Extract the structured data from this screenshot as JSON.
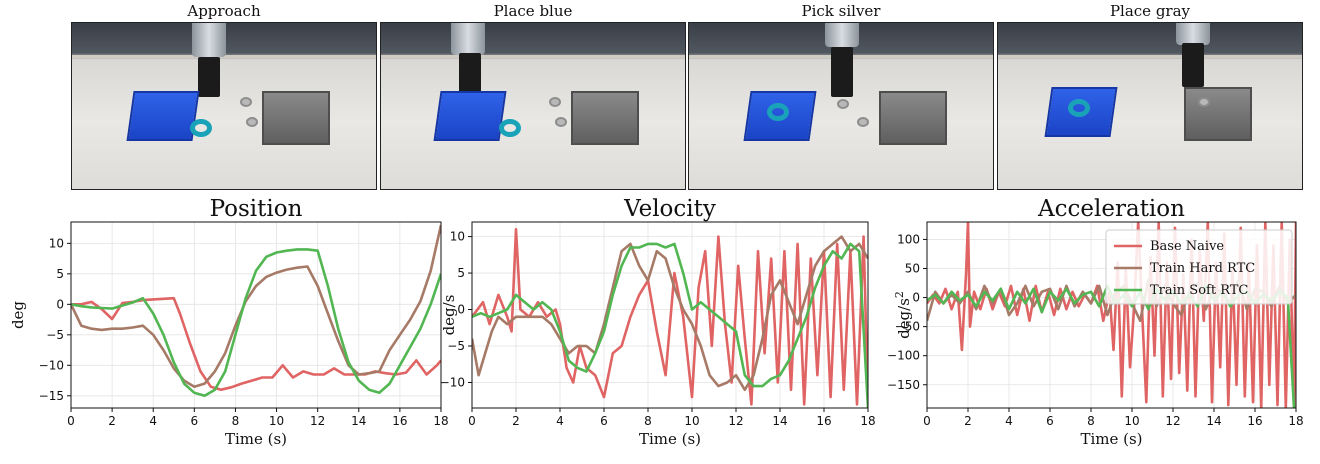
{
  "frames": [
    {
      "caption": "Approach"
    },
    {
      "caption": "Place blue"
    },
    {
      "caption": "Pick silver"
    },
    {
      "caption": "Place gray"
    }
  ],
  "colors": {
    "base_naive": "#e06464",
    "train_hard_rtc": "#a67a66",
    "train_soft_rtc": "#52b652"
  },
  "chart_data": [
    {
      "type": "line",
      "title": "Position",
      "xlabel": "Time (s)",
      "ylabel": "deg",
      "xlim": [
        0,
        18
      ],
      "ylim": [
        -17,
        13.5
      ],
      "xticks": [
        0,
        2,
        4,
        6,
        8,
        10,
        12,
        14,
        16,
        18
      ],
      "yticks": [
        10,
        5,
        0,
        -5,
        -10,
        -15
      ],
      "grid": true,
      "series": [
        {
          "key": "base_naive",
          "x": [
            0,
            0.5,
            1,
            1.5,
            2,
            2.5,
            3,
            3.5,
            4,
            4.5,
            5,
            5.3,
            5.8,
            6.3,
            6.8,
            7.3,
            7.8,
            8.3,
            8.8,
            9.3,
            9.8,
            10.3,
            10.8,
            11.3,
            11.8,
            12.3,
            12.8,
            13.3,
            13.8,
            14.3,
            14.8,
            15.3,
            15.8,
            16.3,
            16.8,
            17.3,
            17.8,
            18
          ],
          "y": [
            0,
            0,
            0.4,
            -0.8,
            -2.4,
            0.2,
            0.4,
            0.7,
            0.8,
            0.9,
            1.0,
            -1.5,
            -6.5,
            -11,
            -13.5,
            -14,
            -13.6,
            -13,
            -12.5,
            -12,
            -12,
            -10,
            -12,
            -11,
            -11.5,
            -11.5,
            -10.5,
            -11.5,
            -11.5,
            -11.5,
            -11,
            -11.3,
            -11.5,
            -11.2,
            -9.2,
            -11.5,
            -10,
            -9.2
          ]
        },
        {
          "key": "train_hard_rtc",
          "x": [
            0,
            0.5,
            1,
            1.5,
            2,
            2.5,
            3,
            3.5,
            4,
            4.5,
            5,
            5.5,
            6,
            6.5,
            7,
            7.5,
            8,
            8.5,
            9,
            9.5,
            10,
            10.5,
            11,
            11.5,
            12,
            12.5,
            13,
            13.5,
            14,
            14.5,
            15,
            15.5,
            16,
            16.5,
            17,
            17.5,
            18
          ],
          "y": [
            0,
            -3.5,
            -4,
            -4.2,
            -4,
            -4,
            -3.8,
            -3.5,
            -5,
            -7.5,
            -10.5,
            -12.5,
            -13.5,
            -13,
            -11,
            -8,
            -3.5,
            0.5,
            3,
            4.5,
            5.2,
            5.7,
            6,
            6.2,
            3,
            -1.5,
            -6,
            -10,
            -11.5,
            -11.3,
            -11,
            -7.5,
            -5,
            -2.5,
            0.5,
            5.5,
            13
          ]
        },
        {
          "key": "train_soft_rtc",
          "x": [
            0,
            0.5,
            1,
            1.5,
            2,
            2.5,
            3,
            3.5,
            4,
            4.5,
            5,
            5.5,
            6,
            6.5,
            7,
            7.5,
            8,
            8.5,
            9,
            9.5,
            10,
            10.5,
            11,
            11.5,
            12,
            12.5,
            13,
            13.5,
            14,
            14.5,
            15,
            15.5,
            16,
            16.5,
            17,
            17.5,
            18
          ],
          "y": [
            0,
            -0.3,
            -0.5,
            -0.6,
            -0.7,
            -0.2,
            0.3,
            1,
            -1.5,
            -5,
            -9.5,
            -13,
            -14.5,
            -15,
            -14,
            -11,
            -5,
            1,
            5.5,
            7.8,
            8.5,
            8.8,
            9,
            9,
            8.8,
            3,
            -4,
            -9.5,
            -12.5,
            -14,
            -14.5,
            -13,
            -10,
            -7,
            -4,
            0,
            5
          ]
        }
      ],
      "legend": null
    },
    {
      "type": "line",
      "title": "Velocity",
      "xlabel": "Time (s)",
      "ylabel": "deg/s",
      "xlim": [
        0,
        18
      ],
      "ylim": [
        -13.5,
        12
      ],
      "xticks": [
        0,
        2,
        4,
        6,
        8,
        10,
        12,
        14,
        16,
        18
      ],
      "yticks": [
        10,
        5,
        0,
        -5,
        -10
      ],
      "grid": true,
      "series": [
        {
          "key": "base_naive",
          "x": [
            0,
            0.5,
            0.8,
            1.2,
            1.6,
            1.8,
            2,
            2.2,
            2.6,
            3,
            3.4,
            3.8,
            4,
            4.3,
            4.6,
            4.9,
            5.2,
            5.6,
            6,
            6.4,
            6.8,
            7.2,
            7.6,
            8,
            8.4,
            8.8,
            9.2,
            9.6,
            10,
            10.3,
            10.6,
            10.9,
            11.2,
            11.5,
            11.8,
            12.1,
            12.4,
            12.7,
            13,
            13.3,
            13.6,
            13.9,
            14.2,
            14.5,
            14.8,
            15.1,
            15.4,
            15.7,
            16,
            16.3,
            16.6,
            16.9,
            17.2,
            17.5,
            17.8,
            18
          ],
          "y": [
            -1,
            1,
            -2,
            2,
            -1,
            -3,
            11,
            0,
            -1,
            1,
            -1,
            0,
            -2,
            -8,
            -10,
            -5,
            -8,
            -9,
            -12,
            -6,
            -5,
            -1,
            2,
            4,
            -3,
            -9,
            5,
            -1,
            -12,
            3,
            8,
            -5,
            10,
            -2,
            -10,
            6,
            -4,
            -13,
            8,
            -6,
            7,
            -10,
            8,
            -11,
            9,
            -13,
            7,
            -9,
            8,
            -12,
            9,
            -11,
            8,
            -13,
            10,
            -13
          ]
        },
        {
          "key": "train_hard_rtc",
          "x": [
            0,
            0.3,
            0.6,
            0.9,
            1.2,
            1.6,
            2,
            2.4,
            2.8,
            3.2,
            3.6,
            4,
            4.4,
            4.8,
            5.2,
            5.6,
            6,
            6.4,
            6.8,
            7.2,
            7.6,
            8,
            8.4,
            8.8,
            9.2,
            9.6,
            10,
            10.4,
            10.8,
            11.2,
            11.6,
            12,
            12.4,
            12.8,
            13.2,
            13.6,
            14,
            14.4,
            14.8,
            15.2,
            15.6,
            16,
            16.4,
            16.8,
            17.2,
            17.6,
            18
          ],
          "y": [
            -4,
            -9,
            -6,
            -3,
            -1,
            -2,
            -1,
            -1,
            -1,
            -1,
            -2,
            -4,
            -6,
            -5,
            -5,
            -6,
            -2,
            3,
            8,
            9,
            6,
            4,
            8,
            7,
            3,
            0,
            -2,
            -5,
            -9,
            -10.5,
            -10,
            -9,
            -11,
            -9,
            -4,
            2,
            4,
            1,
            -2,
            2,
            6,
            8,
            9,
            10,
            8,
            9,
            7
          ]
        },
        {
          "key": "train_soft_rtc",
          "x": [
            0,
            0.4,
            0.8,
            1.2,
            1.6,
            2,
            2.4,
            2.8,
            3.2,
            3.6,
            4,
            4.4,
            4.8,
            5.2,
            5.6,
            6,
            6.4,
            6.8,
            7.2,
            7.6,
            8,
            8.4,
            8.8,
            9.2,
            9.6,
            10,
            10.4,
            10.8,
            11.2,
            11.6,
            12,
            12.4,
            12.8,
            13.2,
            13.6,
            14,
            14.4,
            14.8,
            15.2,
            15.6,
            16,
            16.4,
            16.8,
            17.2,
            17.6,
            18
          ],
          "y": [
            -1,
            -0.5,
            -1,
            -0.5,
            0,
            2,
            1,
            0,
            1,
            0,
            -3,
            -7,
            -8,
            -8.5,
            -6,
            -3,
            2,
            6,
            8.5,
            8.5,
            9,
            9,
            8.5,
            9,
            5,
            0,
            1,
            0,
            -1,
            -2,
            -3,
            -9,
            -10.5,
            -10.5,
            -9.5,
            -9,
            -7,
            -4,
            -1,
            3,
            6,
            8,
            7,
            9,
            8,
            -13.5
          ]
        }
      ],
      "legend": null
    },
    {
      "type": "line",
      "title": "Acceleration",
      "xlabel": "Time (s)",
      "ylabel": "deg/s^2",
      "xlim": [
        0,
        18
      ],
      "ylim": [
        -190,
        130
      ],
      "xticks": [
        0,
        2,
        4,
        6,
        8,
        10,
        12,
        14,
        16,
        18
      ],
      "yticks": [
        100,
        50,
        0,
        -50,
        -100,
        -150
      ],
      "grid": true,
      "series": [
        {
          "key": "base_naive",
          "x": [
            0,
            0.3,
            0.6,
            0.9,
            1.2,
            1.5,
            1.7,
            1.9,
            2,
            2.1,
            2.3,
            2.6,
            2.9,
            3.2,
            3.5,
            3.8,
            4.1,
            4.4,
            4.7,
            5,
            5.3,
            5.6,
            5.9,
            6.2,
            6.5,
            6.8,
            7.1,
            7.4,
            7.7,
            8,
            8.3,
            8.6,
            8.9,
            9.1,
            9.3,
            9.5,
            9.7,
            9.9,
            10.1,
            10.3,
            10.5,
            10.7,
            10.9,
            11.1,
            11.3,
            11.5,
            11.7,
            11.9,
            12.1,
            12.3,
            12.5,
            12.7,
            12.9,
            13.1,
            13.3,
            13.5,
            13.7,
            13.9,
            14.1,
            14.3,
            14.5,
            14.7,
            14.9,
            15.1,
            15.3,
            15.5,
            15.7,
            15.9,
            16.1,
            16.3,
            16.5,
            16.7,
            16.9,
            17.1,
            17.3,
            17.5,
            17.7,
            17.9,
            18
          ],
          "y": [
            -10,
            5,
            -10,
            15,
            -20,
            10,
            -90,
            40,
            130,
            -50,
            10,
            -20,
            15,
            -20,
            10,
            -15,
            20,
            -30,
            15,
            -40,
            20,
            -25,
            10,
            -30,
            15,
            -20,
            10,
            -15,
            5,
            -10,
            20,
            -40,
            10,
            -90,
            60,
            -170,
            50,
            -120,
            -20,
            130,
            -30,
            -180,
            70,
            -100,
            130,
            -170,
            60,
            -140,
            120,
            -130,
            40,
            -160,
            100,
            -170,
            80,
            -40,
            130,
            -180,
            60,
            -120,
            110,
            -185,
            50,
            -150,
            120,
            -170,
            60,
            -180,
            90,
            -190,
            130,
            -150,
            90,
            -185,
            130,
            -190,
            100,
            -190,
            130
          ]
        },
        {
          "key": "train_hard_rtc",
          "x": [
            0,
            0.4,
            0.8,
            1.2,
            1.6,
            2,
            2.4,
            2.8,
            3.2,
            3.6,
            4,
            4.4,
            4.8,
            5.2,
            5.6,
            6,
            6.4,
            6.8,
            7.2,
            7.6,
            8,
            8.4,
            8.8,
            9.2,
            9.6,
            10,
            10.4,
            10.8,
            11.2,
            11.6,
            12,
            12.4,
            12.8,
            13.2,
            13.6,
            14,
            14.4,
            14.8,
            15.2,
            15.6,
            16,
            16.4,
            16.8,
            17.2,
            17.6,
            18
          ],
          "y": [
            -40,
            10,
            -10,
            5,
            -10,
            10,
            -20,
            20,
            -10,
            15,
            -30,
            -10,
            20,
            -15,
            10,
            15,
            -20,
            20,
            -15,
            10,
            -10,
            20,
            -30,
            10,
            20,
            -10,
            -40,
            30,
            -15,
            20,
            -10,
            -30,
            10,
            25,
            -20,
            15,
            10,
            -10,
            30,
            -20,
            15,
            10,
            -15,
            20,
            -10,
            5
          ]
        },
        {
          "key": "train_soft_rtc",
          "x": [
            0,
            0.4,
            0.8,
            1.2,
            1.6,
            2,
            2.4,
            2.8,
            3.2,
            3.6,
            4,
            4.4,
            4.8,
            5.2,
            5.6,
            6,
            6.4,
            6.8,
            7.2,
            7.6,
            8,
            8.4,
            8.8,
            9.2,
            9.6,
            10,
            10.4,
            10.8,
            11.2,
            11.6,
            12,
            12.4,
            12.8,
            13.2,
            13.6,
            14,
            14.4,
            14.8,
            15.2,
            15.6,
            16,
            16.4,
            16.8,
            17.2,
            17.6,
            17.9,
            18
          ],
          "y": [
            -5,
            5,
            -10,
            10,
            -5,
            5,
            -15,
            10,
            -5,
            15,
            -20,
            10,
            -10,
            15,
            -25,
            10,
            -5,
            15,
            -10,
            5,
            10,
            -15,
            20,
            -10,
            5,
            -15,
            10,
            -20,
            15,
            -5,
            10,
            -10,
            5,
            -15,
            20,
            -5,
            10,
            -15,
            5,
            10,
            -10,
            5,
            -5,
            10,
            0,
            -190,
            -190
          ]
        }
      ],
      "legend": {
        "position": "top-right",
        "entries": [
          {
            "key": "base_naive",
            "label": "Base Naive"
          },
          {
            "key": "train_hard_rtc",
            "label": "Train Hard RTC"
          },
          {
            "key": "train_soft_rtc",
            "label": "Train Soft RTC"
          }
        ]
      }
    }
  ]
}
